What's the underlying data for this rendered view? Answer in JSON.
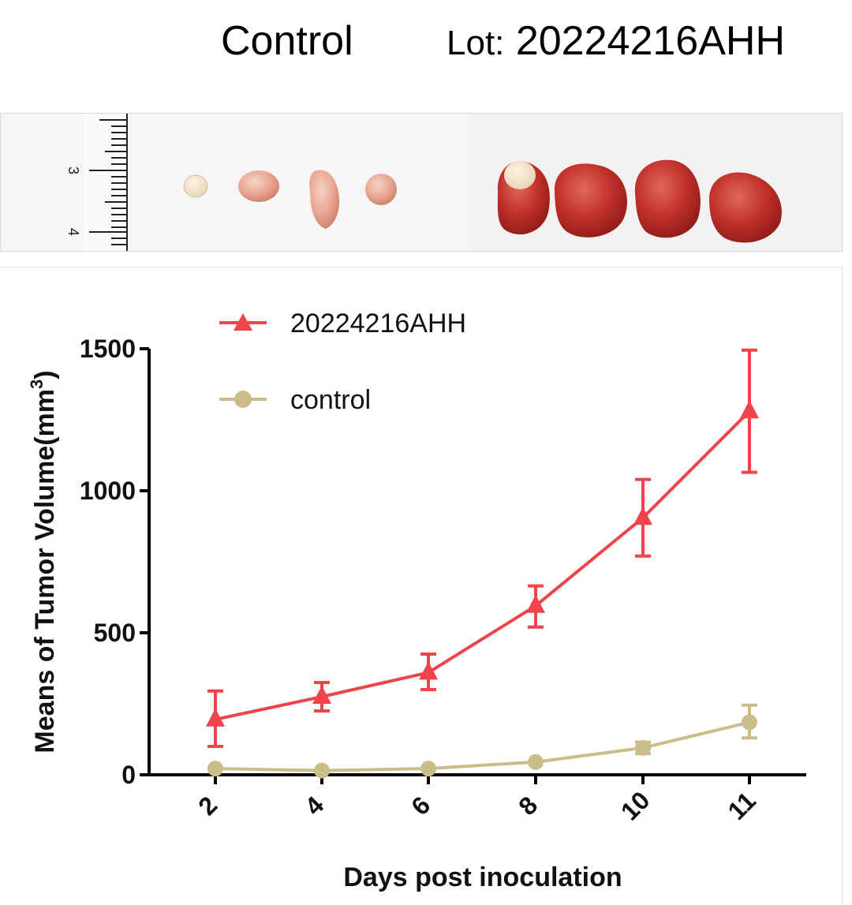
{
  "header": {
    "group_label": "Control",
    "lot_prefix": "Lot:",
    "lot_number": "20224216AHH"
  },
  "ruler": {
    "marks": [
      "3",
      "4"
    ]
  },
  "colors": {
    "treated": "#f0434a",
    "control": "#c9bd89",
    "axis": "#000000"
  },
  "chart_data": {
    "type": "line",
    "title": "",
    "xlabel": "Days post inoculation",
    "ylabel_main": "Means of Tumor Volume(mm",
    "ylabel_sup": "3",
    "ylabel_close": ")",
    "x": [
      2,
      4,
      6,
      8,
      10,
      11
    ],
    "x_tick_labels": [
      "2",
      "4",
      "6",
      "8",
      "10",
      "11"
    ],
    "ylim": [
      0,
      1500
    ],
    "y_ticks": [
      0,
      500,
      1000,
      1500
    ],
    "y_tick_labels": [
      "0",
      "500",
      "1000",
      "1500"
    ],
    "legend_position": "top-left",
    "series": [
      {
        "name": "20224216AHH",
        "marker": "triangle",
        "values": [
          195,
          275,
          360,
          595,
          905,
          1280
        ],
        "err_low": [
          100,
          225,
          300,
          520,
          770,
          1065
        ],
        "err_high": [
          295,
          325,
          425,
          665,
          1040,
          1495
        ]
      },
      {
        "name": "control",
        "marker": "circle",
        "values": [
          22,
          15,
          22,
          45,
          95,
          185
        ],
        "err_low": [
          22,
          15,
          22,
          45,
          75,
          130
        ],
        "err_high": [
          22,
          15,
          22,
          45,
          115,
          245
        ]
      }
    ]
  }
}
